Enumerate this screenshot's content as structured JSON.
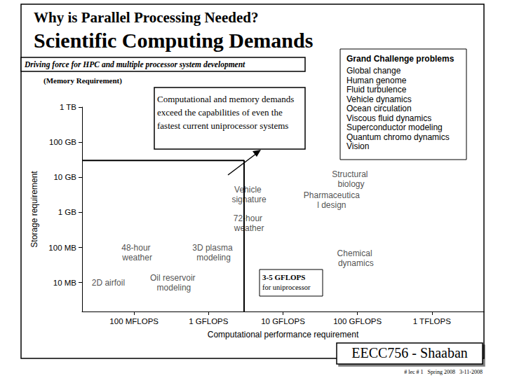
{
  "slide": {
    "title": "Why is Parallel Processing Needed?",
    "heading": "Scientific Computing Demands",
    "subtitle": "Driving force for HPC and multiple processor system development",
    "note": "(Memory Requirement)",
    "footer": "EECC756 - Shaaban",
    "footer_small": "# lec # 1   Spring 2008   3-11-2008"
  },
  "grand_challenge": {
    "title": "Grand Challenge problems",
    "items": [
      "Global change",
      "Human genome",
      "Fluid turbulence",
      "Vehicle dynamics",
      "Ocean circulation",
      "Viscous fluid dynamics",
      "Superconductor modeling",
      "Quantum chromo dynamics",
      "Vision"
    ]
  },
  "annotation": "Computational and memory demands exceed the capabilities of even the fastest current uniprocessor systems",
  "chart_data": {
    "type": "scatter",
    "log": true,
    "grid": false,
    "x_label": "Computational performance requirement",
    "y_label": "Storage requirement",
    "xlim": [
      0.02,
      5000
    ],
    "ylim": [
      0.0015,
      1000
    ],
    "xticks": [
      {
        "value": 0.1,
        "label": "100 MFLOPS"
      },
      {
        "value": 1,
        "label": "1 GFLOPS"
      },
      {
        "value": 10,
        "label": "10 GFLOPS"
      },
      {
        "value": 100,
        "label": "100 GFLOPS"
      },
      {
        "value": 1000,
        "label": "1 TFLOPS"
      }
    ],
    "yticks": [
      {
        "value": 0.01,
        "label": "10 MB"
      },
      {
        "value": 0.1,
        "label": "100 MB"
      },
      {
        "value": 1,
        "label": "1 GB"
      },
      {
        "value": 10,
        "label": "10 GB"
      },
      {
        "value": 100,
        "label": "100 GB"
      },
      {
        "value": 1000,
        "label": "1 TB"
      }
    ],
    "points": [
      {
        "label": "2D airfoil",
        "x": 0.045,
        "y": 0.01
      },
      {
        "label": "Oil reservoir modeling",
        "x": 0.33,
        "y": 0.01
      },
      {
        "label": "48-hour weather",
        "x": 0.11,
        "y": 0.07
      },
      {
        "label": "3D plasma modeling",
        "x": 1.17,
        "y": 0.07
      },
      {
        "label": "72-hour weather",
        "x": 3.5,
        "y": 0.48
      },
      {
        "label": "Vehicle signature",
        "x": 3.5,
        "y": 3.2
      },
      {
        "label": "Pharmaceutical design",
        "x": 45,
        "y": 2.2
      },
      {
        "label": "Structural biology",
        "x": 82,
        "y": 8.7
      },
      {
        "label": "Chemical dynamics",
        "x": 95,
        "y": 0.05
      }
    ],
    "limit": {
      "x": 3,
      "y": 30,
      "label": [
        "3-5 GFLOPS",
        "for uniprocessor"
      ]
    }
  }
}
